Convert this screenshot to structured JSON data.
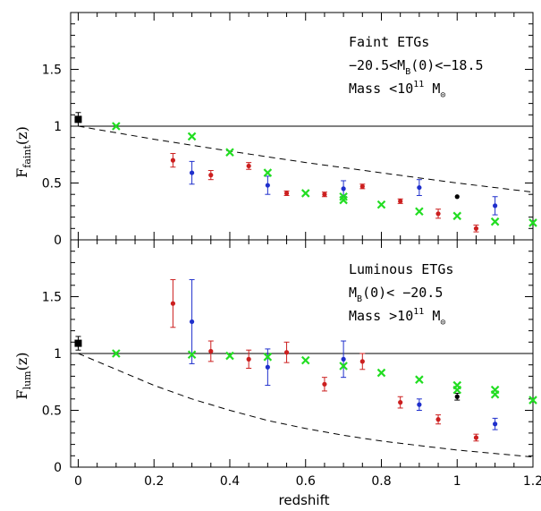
{
  "chart_data": [
    {
      "type": "scatter",
      "ylabel_main": "F",
      "ylabel_sub": "faint",
      "ylabel_tail": "(z)",
      "xlim": [
        -0.02,
        1.2
      ],
      "ylim": [
        0,
        2.0
      ],
      "yticks": [
        "0",
        "0.5",
        "1",
        "1.5"
      ],
      "yticks_values": [
        0,
        0.5,
        1,
        1.5
      ],
      "annotation_lines": [
        {
          "parts": [
            {
              "t": "Faint ETGs"
            }
          ]
        },
        {
          "parts": [
            {
              "t": "−20.5<M"
            },
            {
              "t": "B",
              "sub": true
            },
            {
              "t": "(0)<−18.5"
            }
          ]
        },
        {
          "parts": [
            {
              "t": "Mass <10"
            },
            {
              "t": "11",
              "sup": true
            },
            {
              "t": " M"
            },
            {
              "t": "⊙",
              "sub": true
            }
          ]
        }
      ],
      "reference_line": 1.0,
      "model_curve": [
        [
          0,
          1.0
        ],
        [
          0.2,
          0.885
        ],
        [
          0.4,
          0.78
        ],
        [
          0.6,
          0.68
        ],
        [
          0.8,
          0.59
        ],
        [
          1.0,
          0.5
        ],
        [
          1.2,
          0.42
        ]
      ],
      "series": [
        {
          "color": "#000000",
          "marker": "square",
          "points": [
            [
              0.0,
              1.06,
              0.06
            ]
          ]
        },
        {
          "color": "#000000",
          "marker": "dot",
          "points": [
            [
              1.0,
              0.38,
              0
            ]
          ]
        },
        {
          "color": "#cc1f1f",
          "marker": "dot",
          "points": [
            [
              0.25,
              0.7,
              0.06
            ],
            [
              0.35,
              0.57,
              0.04
            ],
            [
              0.45,
              0.65,
              0.03
            ],
            [
              0.55,
              0.41,
              0.02
            ],
            [
              0.65,
              0.4,
              0.02
            ],
            [
              0.75,
              0.47,
              0.02
            ],
            [
              0.85,
              0.34,
              0.02
            ],
            [
              0.95,
              0.23,
              0.04
            ],
            [
              1.05,
              0.1,
              0.03
            ]
          ]
        },
        {
          "color": "#1f2fcc",
          "marker": "dot",
          "points": [
            [
              0.3,
              0.59,
              0.1
            ],
            [
              0.5,
              0.48,
              0.08
            ],
            [
              0.7,
              0.45,
              0.07
            ],
            [
              0.9,
              0.46,
              0.07
            ],
            [
              1.1,
              0.3,
              0.08
            ]
          ]
        },
        {
          "color": "#22dd22",
          "marker": "x",
          "points": [
            [
              0.1,
              1.0
            ],
            [
              0.3,
              0.91
            ],
            [
              0.4,
              0.77
            ],
            [
              0.5,
              0.59
            ],
            [
              0.6,
              0.41
            ],
            [
              0.7,
              0.38
            ],
            [
              0.7,
              0.35
            ],
            [
              0.8,
              0.31
            ],
            [
              0.9,
              0.25
            ],
            [
              1.0,
              0.21
            ],
            [
              1.1,
              0.16
            ],
            [
              1.2,
              0.15
            ]
          ]
        }
      ]
    },
    {
      "type": "scatter",
      "ylabel_main": "F",
      "ylabel_sub": "lum",
      "ylabel_tail": "(z)",
      "xlabel": "redshift",
      "xlim": [
        -0.02,
        1.2
      ],
      "ylim": [
        0,
        2.0
      ],
      "xticks": [
        "0",
        "0.2",
        "0.4",
        "0.6",
        "0.8",
        "1",
        "1.2"
      ],
      "xticks_values": [
        0,
        0.2,
        0.4,
        0.6,
        0.8,
        1.0,
        1.2
      ],
      "yticks": [
        "0",
        "0.5",
        "1",
        "1.5"
      ],
      "yticks_values": [
        0,
        0.5,
        1,
        1.5
      ],
      "annotation_lines": [
        {
          "parts": [
            {
              "t": "Luminous ETGs"
            }
          ]
        },
        {
          "parts": [
            {
              "t": "M"
            },
            {
              "t": "B",
              "sub": true
            },
            {
              "t": "(0)< −20.5"
            }
          ]
        },
        {
          "parts": [
            {
              "t": "Mass >10"
            },
            {
              "t": "11",
              "sup": true
            },
            {
              "t": " M"
            },
            {
              "t": "⊙",
              "sub": true
            }
          ]
        }
      ],
      "reference_line": 1.0,
      "model_curve": [
        [
          0,
          1.0
        ],
        [
          0.1,
          0.86
        ],
        [
          0.2,
          0.72
        ],
        [
          0.3,
          0.6
        ],
        [
          0.4,
          0.5
        ],
        [
          0.5,
          0.41
        ],
        [
          0.6,
          0.34
        ],
        [
          0.7,
          0.28
        ],
        [
          0.8,
          0.23
        ],
        [
          0.9,
          0.19
        ],
        [
          1.0,
          0.15
        ],
        [
          1.1,
          0.12
        ],
        [
          1.2,
          0.09
        ]
      ],
      "series": [
        {
          "color": "#000000",
          "marker": "square",
          "points": [
            [
              0.0,
              1.09,
              0.06
            ]
          ]
        },
        {
          "color": "#000000",
          "marker": "dot",
          "points": [
            [
              1.0,
              0.62,
              0.03
            ]
          ]
        },
        {
          "color": "#cc1f1f",
          "marker": "dot",
          "points": [
            [
              0.25,
              1.44,
              0.21
            ],
            [
              0.35,
              1.02,
              0.09
            ],
            [
              0.45,
              0.95,
              0.08
            ],
            [
              0.55,
              1.01,
              0.09
            ],
            [
              0.65,
              0.73,
              0.06
            ],
            [
              0.75,
              0.93,
              0.07
            ],
            [
              0.85,
              0.57,
              0.05
            ],
            [
              0.95,
              0.42,
              0.04
            ],
            [
              1.05,
              0.26,
              0.03
            ]
          ]
        },
        {
          "color": "#1f2fcc",
          "marker": "dot",
          "points": [
            [
              0.3,
              1.28,
              0.37
            ],
            [
              0.5,
              0.88,
              0.16
            ],
            [
              0.7,
              0.95,
              0.16
            ],
            [
              0.9,
              0.55,
              0.05
            ],
            [
              1.1,
              0.38,
              0.05
            ]
          ]
        },
        {
          "color": "#22dd22",
          "marker": "x",
          "points": [
            [
              0.1,
              1.0
            ],
            [
              0.3,
              0.99
            ],
            [
              0.4,
              0.98
            ],
            [
              0.5,
              0.97
            ],
            [
              0.6,
              0.94
            ],
            [
              0.7,
              0.89
            ],
            [
              0.8,
              0.83
            ],
            [
              0.9,
              0.77
            ],
            [
              1.0,
              0.72
            ],
            [
              1.0,
              0.68
            ],
            [
              1.1,
              0.68
            ],
            [
              1.1,
              0.64
            ],
            [
              1.2,
              0.59
            ]
          ]
        }
      ]
    }
  ]
}
